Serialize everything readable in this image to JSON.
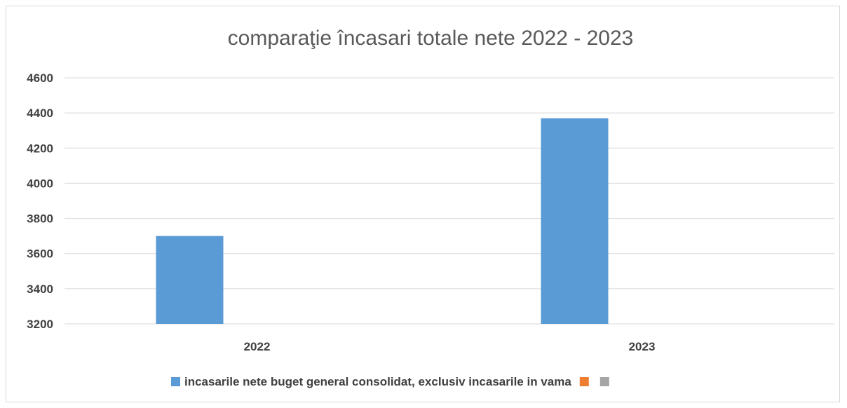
{
  "chart_data": {
    "type": "bar",
    "title": "comparaţie încasari totale nete 2022 - 2023",
    "categories": [
      "2022",
      "2023"
    ],
    "ylim": [
      3200,
      4600
    ],
    "yticks": [
      3200,
      3400,
      3600,
      3800,
      4000,
      4200,
      4400,
      4600
    ],
    "grid": true,
    "legend_position": "bottom",
    "series": [
      {
        "name": "incasarile nete buget general consolidat, exclusiv incasarile in vama",
        "color": "#5b9bd5",
        "values": [
          3700,
          4370
        ]
      },
      {
        "name": "",
        "color": "#ed7d31",
        "values": [
          null,
          null
        ]
      },
      {
        "name": "",
        "color": "#a5a5a5",
        "values": [
          null,
          null
        ]
      }
    ]
  }
}
